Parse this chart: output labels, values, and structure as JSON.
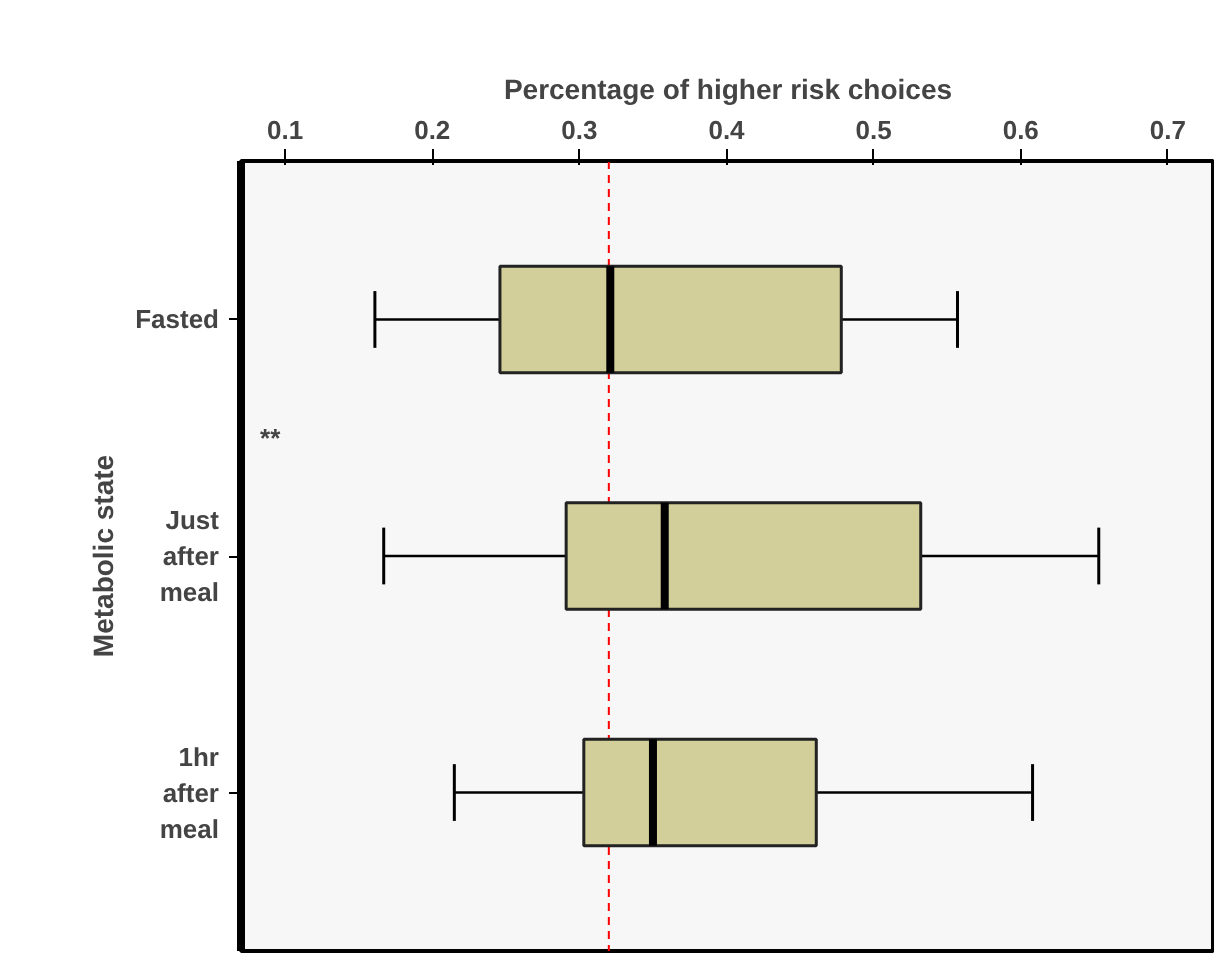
{
  "chart_data": {
    "type": "box",
    "orientation": "horizontal",
    "xlabel": "Percentage of higher risk choices",
    "ylabel": "Metabolic state",
    "categories": [
      "Fasted",
      "Just after meal",
      "1hr after meal"
    ],
    "series": [
      {
        "color": "#d3cf9a",
        "boxes": [
          {
            "low": 0.161,
            "q1": 0.246,
            "median": 0.321,
            "q3": 0.478,
            "high": 0.557
          },
          {
            "low": 0.167,
            "q1": 0.291,
            "median": 0.358,
            "q3": 0.532,
            "high": 0.653
          },
          {
            "low": 0.215,
            "q1": 0.303,
            "median": 0.35,
            "q3": 0.461,
            "high": 0.608
          }
        ]
      }
    ],
    "xlim": [
      0.07,
      0.732
    ],
    "xticks": [
      0.1,
      0.2,
      0.3,
      0.4,
      0.5,
      0.6,
      0.7
    ],
    "ref_lines": [
      {
        "axis": "x",
        "value": 0.32,
        "color": "#ff0000",
        "line_style": "dashed"
      }
    ],
    "annotations": [
      "**"
    ],
    "grid": false
  }
}
